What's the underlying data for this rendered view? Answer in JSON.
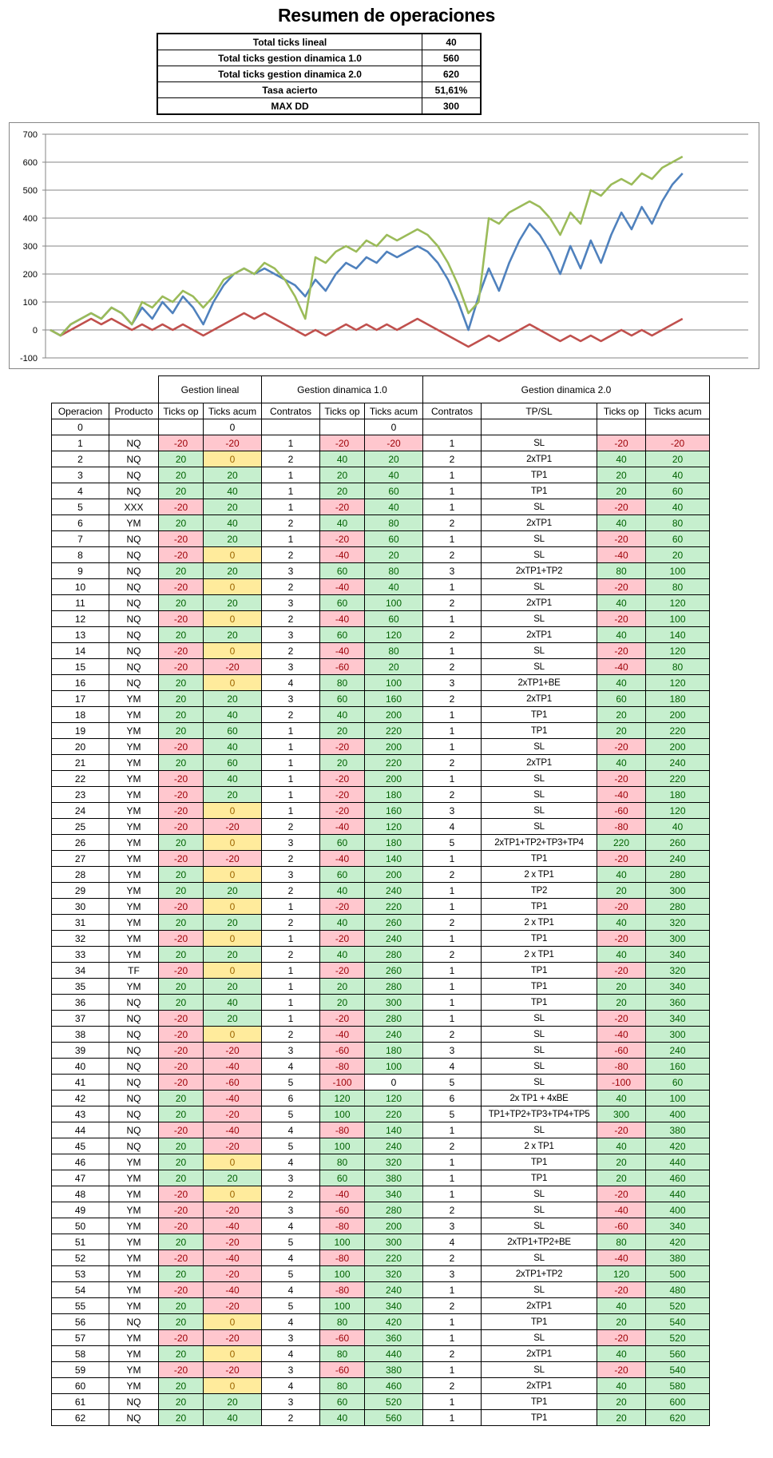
{
  "title": "Resumen de operaciones",
  "summary": [
    {
      "label": "Total ticks lineal",
      "value": "40"
    },
    {
      "label": "Total ticks gestion dinamica 1.0",
      "value": "560"
    },
    {
      "label": "Total ticks gestion dinamica 2.0",
      "value": "620"
    },
    {
      "label": "Tasa acierto",
      "value": "51,61%"
    },
    {
      "label": "MAX DD",
      "value": "300"
    }
  ],
  "colors": {
    "lineal": "#C0504D",
    "dinamica_1": "#4F81BD",
    "dinamica_2": "#9BBB59",
    "neg_fill": "#FFC7CE",
    "pos_fill": "#C6EFCE",
    "zero_fill": "#FFEB9C"
  },
  "chart_data": {
    "type": "line",
    "x": [
      0,
      1,
      2,
      3,
      4,
      5,
      6,
      7,
      8,
      9,
      10,
      11,
      12,
      13,
      14,
      15,
      16,
      17,
      18,
      19,
      20,
      21,
      22,
      23,
      24,
      25,
      26,
      27,
      28,
      29,
      30,
      31,
      32,
      33,
      34,
      35,
      36,
      37,
      38,
      39,
      40,
      41,
      42,
      43,
      44,
      45,
      46,
      47,
      48,
      49,
      50,
      51,
      52,
      53,
      54,
      55,
      56,
      57,
      58,
      59,
      60,
      61,
      62
    ],
    "ylim": [
      -100,
      700
    ],
    "yticks": [
      -100,
      0,
      100,
      200,
      300,
      400,
      500,
      600,
      700
    ],
    "grid": true,
    "legend": "none",
    "series": [
      {
        "color": "#C0504D",
        "values": [
          0,
          -20,
          0,
          20,
          40,
          20,
          40,
          20,
          0,
          20,
          0,
          20,
          0,
          20,
          0,
          -20,
          0,
          20,
          40,
          60,
          40,
          60,
          40,
          20,
          0,
          -20,
          0,
          -20,
          0,
          20,
          0,
          20,
          0,
          20,
          0,
          20,
          40,
          20,
          0,
          -20,
          -40,
          -60,
          -40,
          -20,
          -40,
          -20,
          0,
          20,
          0,
          -20,
          -40,
          -20,
          -40,
          -20,
          -40,
          -20,
          0,
          -20,
          0,
          -20,
          0,
          20,
          40
        ]
      },
      {
        "color": "#4F81BD",
        "values": [
          0,
          -20,
          20,
          40,
          60,
          40,
          80,
          60,
          20,
          80,
          40,
          100,
          60,
          120,
          80,
          20,
          100,
          160,
          200,
          220,
          200,
          220,
          200,
          180,
          160,
          120,
          180,
          140,
          200,
          240,
          220,
          260,
          240,
          280,
          260,
          280,
          300,
          280,
          240,
          180,
          100,
          0,
          120,
          220,
          140,
          240,
          320,
          380,
          340,
          280,
          200,
          300,
          220,
          320,
          240,
          340,
          420,
          360,
          440,
          380,
          460,
          520,
          560
        ]
      },
      {
        "color": "#9BBB59",
        "values": [
          0,
          -20,
          20,
          40,
          60,
          40,
          80,
          60,
          20,
          100,
          80,
          120,
          100,
          140,
          120,
          80,
          120,
          180,
          200,
          220,
          200,
          240,
          220,
          180,
          120,
          40,
          260,
          240,
          280,
          300,
          280,
          320,
          300,
          340,
          320,
          340,
          360,
          340,
          300,
          240,
          160,
          60,
          100,
          400,
          380,
          420,
          440,
          460,
          440,
          400,
          340,
          420,
          380,
          500,
          480,
          520,
          540,
          520,
          560,
          540,
          580,
          600,
          620
        ]
      }
    ]
  },
  "table": {
    "groups": [
      "Gestion lineal",
      "Gestion dinamica 1.0",
      "Gestion dinamica 2.0"
    ],
    "headers": [
      "Operacion",
      "Producto",
      "Ticks op",
      "Ticks acum",
      "Contratos",
      "Ticks op",
      "Ticks acum",
      "Contratos",
      "TP/SL",
      "Ticks op",
      "Ticks acum"
    ],
    "rows": [
      [
        "0",
        "",
        "",
        "0",
        "",
        "",
        "0",
        "",
        "",
        "",
        ""
      ],
      [
        "1",
        "NQ",
        "-20",
        "-20",
        "1",
        "-20",
        "-20",
        "1",
        "SL",
        "-20",
        "-20"
      ],
      [
        "2",
        "NQ",
        "20",
        "0",
        "2",
        "40",
        "20",
        "2",
        "2xTP1",
        "40",
        "20"
      ],
      [
        "3",
        "NQ",
        "20",
        "20",
        "1",
        "20",
        "40",
        "1",
        "TP1",
        "20",
        "40"
      ],
      [
        "4",
        "NQ",
        "20",
        "40",
        "1",
        "20",
        "60",
        "1",
        "TP1",
        "20",
        "60"
      ],
      [
        "5",
        "XXX",
        "-20",
        "20",
        "1",
        "-20",
        "40",
        "1",
        "SL",
        "-20",
        "40"
      ],
      [
        "6",
        "YM",
        "20",
        "40",
        "2",
        "40",
        "80",
        "2",
        "2xTP1",
        "40",
        "80"
      ],
      [
        "7",
        "NQ",
        "-20",
        "20",
        "1",
        "-20",
        "60",
        "1",
        "SL",
        "-20",
        "60"
      ],
      [
        "8",
        "NQ",
        "-20",
        "0",
        "2",
        "-40",
        "20",
        "2",
        "SL",
        "-40",
        "20"
      ],
      [
        "9",
        "NQ",
        "20",
        "20",
        "3",
        "60",
        "80",
        "3",
        "2xTP1+TP2",
        "80",
        "100"
      ],
      [
        "10",
        "NQ",
        "-20",
        "0",
        "2",
        "-40",
        "40",
        "1",
        "SL",
        "-20",
        "80"
      ],
      [
        "11",
        "NQ",
        "20",
        "20",
        "3",
        "60",
        "100",
        "2",
        "2xTP1",
        "40",
        "120"
      ],
      [
        "12",
        "NQ",
        "-20",
        "0",
        "2",
        "-40",
        "60",
        "1",
        "SL",
        "-20",
        "100"
      ],
      [
        "13",
        "NQ",
        "20",
        "20",
        "3",
        "60",
        "120",
        "2",
        "2xTP1",
        "40",
        "140"
      ],
      [
        "14",
        "NQ",
        "-20",
        "0",
        "2",
        "-40",
        "80",
        "1",
        "SL",
        "-20",
        "120"
      ],
      [
        "15",
        "NQ",
        "-20",
        "-20",
        "3",
        "-60",
        "20",
        "2",
        "SL",
        "-40",
        "80"
      ],
      [
        "16",
        "NQ",
        "20",
        "0",
        "4",
        "80",
        "100",
        "3",
        "2xTP1+BE",
        "40",
        "120"
      ],
      [
        "17",
        "YM",
        "20",
        "20",
        "3",
        "60",
        "160",
        "2",
        "2xTP1",
        "60",
        "180"
      ],
      [
        "18",
        "YM",
        "20",
        "40",
        "2",
        "40",
        "200",
        "1",
        "TP1",
        "20",
        "200"
      ],
      [
        "19",
        "YM",
        "20",
        "60",
        "1",
        "20",
        "220",
        "1",
        "TP1",
        "20",
        "220"
      ],
      [
        "20",
        "YM",
        "-20",
        "40",
        "1",
        "-20",
        "200",
        "1",
        "SL",
        "-20",
        "200"
      ],
      [
        "21",
        "YM",
        "20",
        "60",
        "1",
        "20",
        "220",
        "2",
        "2xTP1",
        "40",
        "240"
      ],
      [
        "22",
        "YM",
        "-20",
        "40",
        "1",
        "-20",
        "200",
        "1",
        "SL",
        "-20",
        "220"
      ],
      [
        "23",
        "YM",
        "-20",
        "20",
        "1",
        "-20",
        "180",
        "2",
        "SL",
        "-40",
        "180"
      ],
      [
        "24",
        "YM",
        "-20",
        "0",
        "1",
        "-20",
        "160",
        "3",
        "SL",
        "-60",
        "120"
      ],
      [
        "25",
        "YM",
        "-20",
        "-20",
        "2",
        "-40",
        "120",
        "4",
        "SL",
        "-80",
        "40"
      ],
      [
        "26",
        "YM",
        "20",
        "0",
        "3",
        "60",
        "180",
        "5",
        "2xTP1+TP2+TP3+TP4",
        "220",
        "260"
      ],
      [
        "27",
        "YM",
        "-20",
        "-20",
        "2",
        "-40",
        "140",
        "1",
        "TP1",
        "-20",
        "240"
      ],
      [
        "28",
        "YM",
        "20",
        "0",
        "3",
        "60",
        "200",
        "2",
        "2 x TP1",
        "40",
        "280"
      ],
      [
        "29",
        "YM",
        "20",
        "20",
        "2",
        "40",
        "240",
        "1",
        "TP2",
        "20",
        "300"
      ],
      [
        "30",
        "YM",
        "-20",
        "0",
        "1",
        "-20",
        "220",
        "1",
        "TP1",
        "-20",
        "280"
      ],
      [
        "31",
        "YM",
        "20",
        "20",
        "2",
        "40",
        "260",
        "2",
        "2 x TP1",
        "40",
        "320"
      ],
      [
        "32",
        "YM",
        "-20",
        "0",
        "1",
        "-20",
        "240",
        "1",
        "TP1",
        "-20",
        "300"
      ],
      [
        "33",
        "YM",
        "20",
        "20",
        "2",
        "40",
        "280",
        "2",
        "2 x TP1",
        "40",
        "340"
      ],
      [
        "34",
        "TF",
        "-20",
        "0",
        "1",
        "-20",
        "260",
        "1",
        "TP1",
        "-20",
        "320"
      ],
      [
        "35",
        "YM",
        "20",
        "20",
        "1",
        "20",
        "280",
        "1",
        "TP1",
        "20",
        "340"
      ],
      [
        "36",
        "NQ",
        "20",
        "40",
        "1",
        "20",
        "300",
        "1",
        "TP1",
        "20",
        "360"
      ],
      [
        "37",
        "NQ",
        "-20",
        "20",
        "1",
        "-20",
        "280",
        "1",
        "SL",
        "-20",
        "340"
      ],
      [
        "38",
        "NQ",
        "-20",
        "0",
        "2",
        "-40",
        "240",
        "2",
        "SL",
        "-40",
        "300"
      ],
      [
        "39",
        "NQ",
        "-20",
        "-20",
        "3",
        "-60",
        "180",
        "3",
        "SL",
        "-60",
        "240"
      ],
      [
        "40",
        "NQ",
        "-20",
        "-40",
        "4",
        "-80",
        "100",
        "4",
        "SL",
        "-80",
        "160"
      ],
      [
        "41",
        "NQ",
        "-20",
        "-60",
        "5",
        "-100",
        "0",
        "5",
        "SL",
        "-100",
        "60"
      ],
      [
        "42",
        "NQ",
        "20",
        "-40",
        "6",
        "120",
        "120",
        "6",
        "2x TP1 + 4xBE",
        "40",
        "100"
      ],
      [
        "43",
        "NQ",
        "20",
        "-20",
        "5",
        "100",
        "220",
        "5",
        "TP1+TP2+TP3+TP4+TP5",
        "300",
        "400"
      ],
      [
        "44",
        "NQ",
        "-20",
        "-40",
        "4",
        "-80",
        "140",
        "1",
        "SL",
        "-20",
        "380"
      ],
      [
        "45",
        "NQ",
        "20",
        "-20",
        "5",
        "100",
        "240",
        "2",
        "2 x TP1",
        "40",
        "420"
      ],
      [
        "46",
        "YM",
        "20",
        "0",
        "4",
        "80",
        "320",
        "1",
        "TP1",
        "20",
        "440"
      ],
      [
        "47",
        "YM",
        "20",
        "20",
        "3",
        "60",
        "380",
        "1",
        "TP1",
        "20",
        "460"
      ],
      [
        "48",
        "YM",
        "-20",
        "0",
        "2",
        "-40",
        "340",
        "1",
        "SL",
        "-20",
        "440"
      ],
      [
        "49",
        "YM",
        "-20",
        "-20",
        "3",
        "-60",
        "280",
        "2",
        "SL",
        "-40",
        "400"
      ],
      [
        "50",
        "YM",
        "-20",
        "-40",
        "4",
        "-80",
        "200",
        "3",
        "SL",
        "-60",
        "340"
      ],
      [
        "51",
        "YM",
        "20",
        "-20",
        "5",
        "100",
        "300",
        "4",
        "2xTP1+TP2+BE",
        "80",
        "420"
      ],
      [
        "52",
        "YM",
        "-20",
        "-40",
        "4",
        "-80",
        "220",
        "2",
        "SL",
        "-40",
        "380"
      ],
      [
        "53",
        "YM",
        "20",
        "-20",
        "5",
        "100",
        "320",
        "3",
        "2xTP1+TP2",
        "120",
        "500"
      ],
      [
        "54",
        "YM",
        "-20",
        "-40",
        "4",
        "-80",
        "240",
        "1",
        "SL",
        "-20",
        "480"
      ],
      [
        "55",
        "YM",
        "20",
        "-20",
        "5",
        "100",
        "340",
        "2",
        "2xTP1",
        "40",
        "520"
      ],
      [
        "56",
        "NQ",
        "20",
        "0",
        "4",
        "80",
        "420",
        "1",
        "TP1",
        "20",
        "540"
      ],
      [
        "57",
        "YM",
        "-20",
        "-20",
        "3",
        "-60",
        "360",
        "1",
        "SL",
        "-20",
        "520"
      ],
      [
        "58",
        "YM",
        "20",
        "0",
        "4",
        "80",
        "440",
        "2",
        "2xTP1",
        "40",
        "560"
      ],
      [
        "59",
        "YM",
        "-20",
        "-20",
        "3",
        "-60",
        "380",
        "1",
        "SL",
        "-20",
        "540"
      ],
      [
        "60",
        "YM",
        "20",
        "0",
        "4",
        "80",
        "460",
        "2",
        "2xTP1",
        "40",
        "580"
      ],
      [
        "61",
        "NQ",
        "20",
        "20",
        "3",
        "60",
        "520",
        "1",
        "TP1",
        "20",
        "600"
      ],
      [
        "62",
        "NQ",
        "20",
        "40",
        "2",
        "40",
        "560",
        "1",
        "TP1",
        "20",
        "620"
      ]
    ]
  }
}
